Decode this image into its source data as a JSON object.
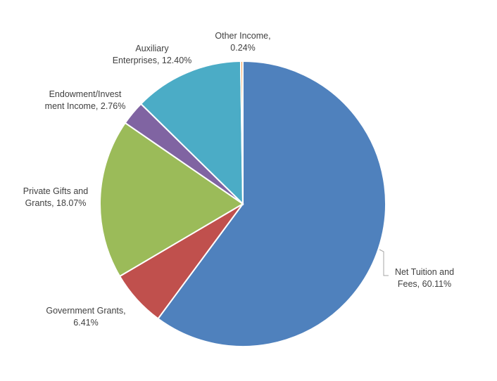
{
  "chart_data": {
    "type": "pie",
    "title": "",
    "slices": [
      {
        "label_lines": [
          "Net Tuition and",
          "Fees, 60.11%"
        ],
        "value": 60.11,
        "color": "#4f81bd"
      },
      {
        "label_lines": [
          "Government Grants,",
          "6.41%"
        ],
        "value": 6.41,
        "color": "#c0504d"
      },
      {
        "label_lines": [
          "Private Gifts and",
          "Grants, 18.07%"
        ],
        "value": 18.07,
        "color": "#9bbb59"
      },
      {
        "label_lines": [
          "Endowment/Invest",
          "ment Income, 2.76%"
        ],
        "value": 2.76,
        "color": "#8064a2"
      },
      {
        "label_lines": [
          "Auxiliary",
          "Enterprises, 12.40%"
        ],
        "value": 12.4,
        "color": "#4bacc6"
      },
      {
        "label_lines": [
          "Other Income,",
          "0.24%"
        ],
        "value": 0.24,
        "color": "#f79646"
      }
    ],
    "start_angle": "12 o'clock",
    "direction": "clockwise",
    "legend": "none"
  }
}
